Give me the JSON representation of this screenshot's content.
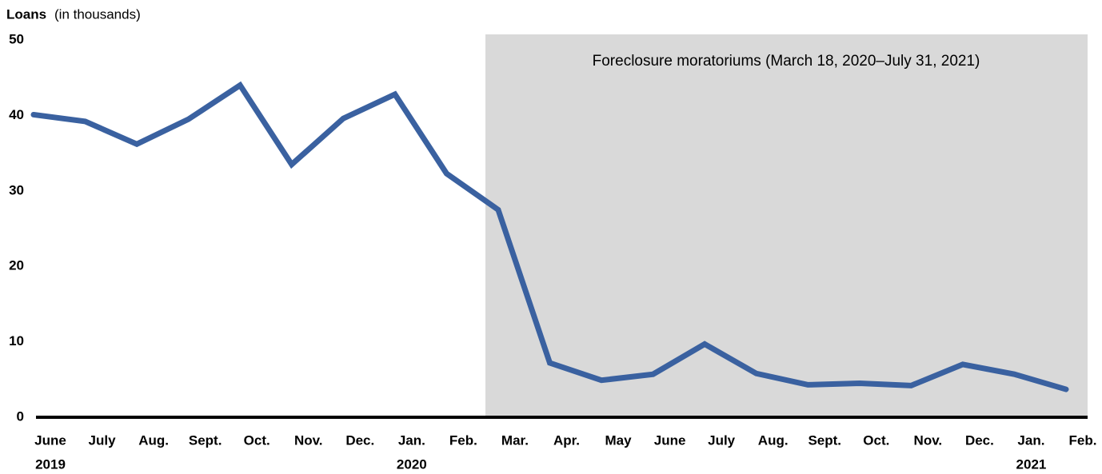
{
  "chart_data": {
    "type": "line",
    "y_label": "Loans",
    "y_unit": "(in thousands)",
    "annotation": "Foreclosure moratoriums (March 18, 2020–July 31, 2021)",
    "categories": [
      "June",
      "July",
      "Aug.",
      "Sept.",
      "Oct.",
      "Nov.",
      "Dec.",
      "Jan.",
      "Feb.",
      "Mar.",
      "Apr.",
      "May",
      "June",
      "July",
      "Aug.",
      "Sept.",
      "Oct.",
      "Nov.",
      "Dec.",
      "Jan.",
      "Feb."
    ],
    "years": [
      "2019",
      null,
      null,
      null,
      null,
      null,
      null,
      "2020",
      null,
      null,
      null,
      null,
      null,
      null,
      null,
      null,
      null,
      null,
      null,
      "2021",
      null
    ],
    "series": [
      {
        "name": "Loans",
        "color": "#3a61a0",
        "values": [
          40.1,
          39.2,
          36.2,
          39.5,
          44.0,
          33.5,
          39.6,
          42.8,
          32.3,
          27.5,
          7.2,
          4.9,
          5.7,
          9.7,
          5.8,
          4.3,
          4.5,
          4.2,
          7.0,
          5.7,
          3.7
        ]
      }
    ],
    "ylim": [
      0,
      50
    ],
    "yticks": [
      0,
      10,
      20,
      30,
      40,
      50
    ],
    "grid": false
  }
}
